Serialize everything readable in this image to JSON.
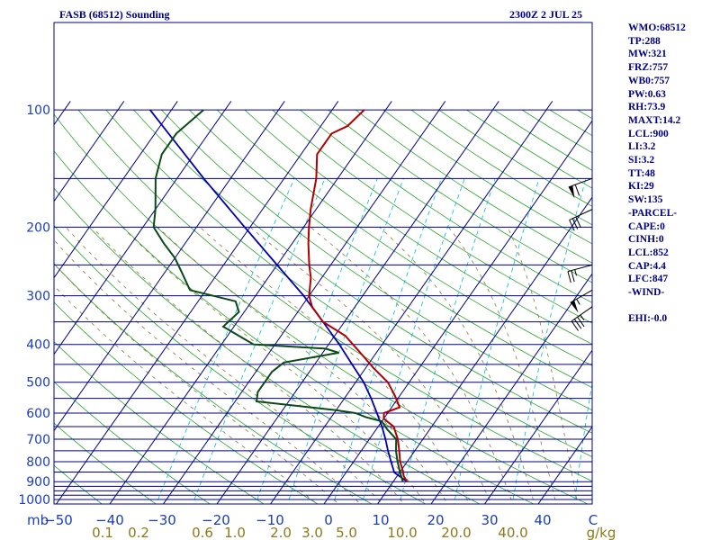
{
  "header": {
    "station_title": "FASB (68512) Sounding",
    "valid_time": "2300Z  2 JUL 25"
  },
  "indices": [
    "WMO:68512",
    "TP:288",
    "MW:321",
    "FRZ:757",
    "WB0:757",
    "PW:0.63",
    "RH:73.9",
    "MAXT:14.2",
    "LCL:900",
    "LI:3.2",
    "SI:3.2",
    "TT:48",
    "KI:29",
    "SW:135",
    "-PARCEL-",
    "CAPE:0",
    "CINH:0",
    "LCL:852",
    "CAP:4.4",
    "LFC:847",
    "-WIND-",
    "",
    "EHI:-0.0"
  ],
  "colors": {
    "isobar": "#00008b",
    "isotherm": "#000080",
    "dry_adiabat": "#2ca02c",
    "moist_adiabat": "#8b7a3a",
    "mixing_ratio": "#00bcd4",
    "temperature": "#b00000",
    "dewpoint": "#0b4a16",
    "parcel": "#0000b0",
    "text": "#000080",
    "axis_labels": "#1a3dbf",
    "mixing_labels": "#8b7a1a"
  },
  "chart_data": {
    "type": "skew-t log-p sounding",
    "title": "FASB (68512) Sounding",
    "pressure_unit": "mb",
    "temperature_unit": "C",
    "mixing_ratio_unit": "g/kg",
    "pressure_range": [
      1000,
      100
    ],
    "temperature_range": [
      -50,
      50
    ],
    "pressure_ticks": [
      100,
      200,
      300,
      400,
      500,
      600,
      700,
      800,
      900,
      1000
    ],
    "isobars": [
      100,
      150,
      200,
      250,
      300,
      350,
      400,
      450,
      500,
      550,
      600,
      650,
      700,
      750,
      800,
      850,
      900,
      925,
      950,
      975,
      1000
    ],
    "temperature_ticks": [
      "-50",
      "-40",
      "-30",
      "-20",
      "-10",
      "0",
      "10",
      "20",
      "30",
      "40",
      "C"
    ],
    "temperature_tick_values": [
      -50,
      -40,
      -30,
      -20,
      -10,
      0,
      10,
      20,
      30,
      40
    ],
    "mixing_ratio_ticks": [
      "0.1",
      "0.2",
      "0.6",
      "1.0",
      "2.0",
      "3.0",
      "5.0",
      "10.0",
      "20.0",
      "40.0"
    ],
    "mixing_ratio_values": [
      0.1,
      0.2,
      0.6,
      1.0,
      2.0,
      3.0,
      5.0,
      10.0,
      20.0,
      40.0
    ],
    "temperature_profile": [
      {
        "p": 900,
        "t": 2.6
      },
      {
        "p": 870,
        "t": 1.2
      },
      {
        "p": 850,
        "t": 0.6
      },
      {
        "p": 800,
        "t": -1.3
      },
      {
        "p": 750,
        "t": -2.9
      },
      {
        "p": 700,
        "t": -4.7
      },
      {
        "p": 650,
        "t": -7.1
      },
      {
        "p": 620,
        "t": -10.0
      },
      {
        "p": 600,
        "t": -10.7
      },
      {
        "p": 580,
        "t": -8.5
      },
      {
        "p": 540,
        "t": -11.0
      },
      {
        "p": 500,
        "t": -14.0
      },
      {
        "p": 460,
        "t": -18.5
      },
      {
        "p": 420,
        "t": -23.0
      },
      {
        "p": 380,
        "t": -28.0
      },
      {
        "p": 350,
        "t": -34.0
      },
      {
        "p": 320,
        "t": -38.0
      },
      {
        "p": 300,
        "t": -40.0
      },
      {
        "p": 270,
        "t": -42.0
      },
      {
        "p": 250,
        "t": -44.0
      },
      {
        "p": 220,
        "t": -47.0
      },
      {
        "p": 200,
        "t": -49.0
      },
      {
        "p": 180,
        "t": -51.0
      },
      {
        "p": 150,
        "t": -54.0
      },
      {
        "p": 130,
        "t": -57.0
      },
      {
        "p": 115,
        "t": -57.0
      },
      {
        "p": 110,
        "t": -55.0
      },
      {
        "p": 100,
        "t": -54.0
      }
    ],
    "dewpoint_profile": [
      {
        "p": 900,
        "td": 1.8
      },
      {
        "p": 850,
        "td": 0.0
      },
      {
        "p": 800,
        "td": -1.8
      },
      {
        "p": 750,
        "td": -3.5
      },
      {
        "p": 700,
        "td": -5.0
      },
      {
        "p": 660,
        "td": -8.0
      },
      {
        "p": 630,
        "td": -10.0
      },
      {
        "p": 615,
        "td": -13.5
      },
      {
        "p": 600,
        "td": -16.0
      },
      {
        "p": 590,
        "td": -20.0
      },
      {
        "p": 560,
        "td": -36.0
      },
      {
        "p": 530,
        "td": -37.0
      },
      {
        "p": 500,
        "td": -37.0
      },
      {
        "p": 470,
        "td": -37.0
      },
      {
        "p": 445,
        "td": -36.0
      },
      {
        "p": 420,
        "td": -27.0
      },
      {
        "p": 410,
        "td": -30.0
      },
      {
        "p": 400,
        "td": -44.0
      },
      {
        "p": 360,
        "td": -52.0
      },
      {
        "p": 330,
        "td": -51.0
      },
      {
        "p": 310,
        "td": -53.0
      },
      {
        "p": 290,
        "td": -63.0
      },
      {
        "p": 260,
        "td": -67.0
      },
      {
        "p": 240,
        "td": -70.0
      },
      {
        "p": 220,
        "td": -74.0
      },
      {
        "p": 200,
        "td": -78.0
      },
      {
        "p": 180,
        "td": -80.0
      },
      {
        "p": 150,
        "td": -84.0
      },
      {
        "p": 130,
        "td": -86.0
      },
      {
        "p": 115,
        "td": -86.0
      },
      {
        "p": 100,
        "td": -84.0
      }
    ],
    "parcel_profile": [
      {
        "p": 900,
        "t": 2.6
      },
      {
        "p": 852,
        "t": -1.0
      },
      {
        "p": 800,
        "t": -3.0
      },
      {
        "p": 750,
        "t": -5.0
      },
      {
        "p": 700,
        "t": -7.0
      },
      {
        "p": 650,
        "t": -9.3
      },
      {
        "p": 600,
        "t": -12.0
      },
      {
        "p": 550,
        "t": -15.0
      },
      {
        "p": 500,
        "t": -18.5
      },
      {
        "p": 450,
        "t": -23.0
      },
      {
        "p": 400,
        "t": -28.0
      },
      {
        "p": 350,
        "t": -34.0
      },
      {
        "p": 300,
        "t": -41.0
      },
      {
        "p": 250,
        "t": -50.0
      },
      {
        "p": 200,
        "t": -61.0
      },
      {
        "p": 150,
        "t": -75.0
      },
      {
        "p": 100,
        "t": -94.0
      }
    ],
    "wind_barbs": [
      {
        "p": 150,
        "dir": 290,
        "speed_kt": 60
      },
      {
        "p": 180,
        "dir": 295,
        "speed_kt": 30
      },
      {
        "p": 250,
        "dir": 285,
        "speed_kt": 25
      },
      {
        "p": 290,
        "dir": 300,
        "speed_kt": 55
      },
      {
        "p": 320,
        "dir": 305,
        "speed_kt": 35
      }
    ]
  }
}
